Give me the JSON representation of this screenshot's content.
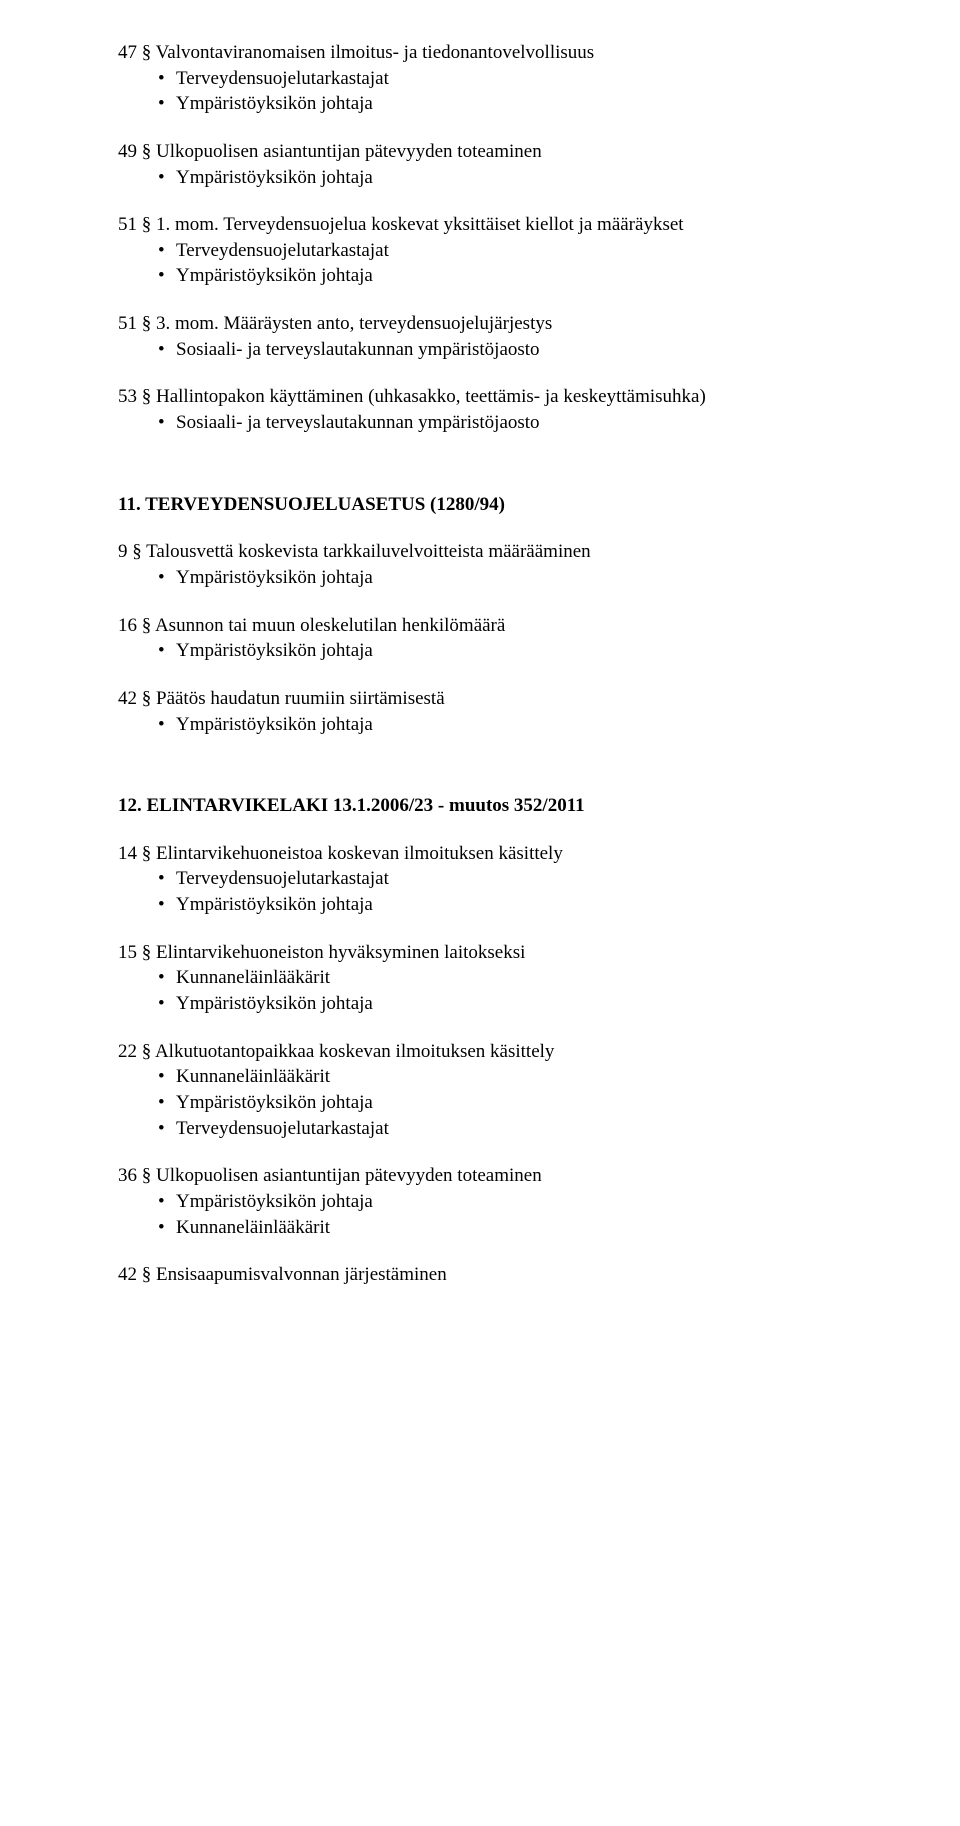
{
  "blocks": [
    {
      "line": "47 § Valvontaviranomaisen ilmoitus- ja tiedonantovelvollisuus",
      "bullets": [
        "Terveydensuojelutarkastajat",
        "Ympäristöyksikön johtaja"
      ]
    },
    {
      "line": "49 § Ulkopuolisen asiantuntijan pätevyyden toteaminen",
      "bullets": [
        "Ympäristöyksikön johtaja"
      ]
    },
    {
      "line": "51 § 1. mom. Terveydensuojelua koskevat yksittäiset kiellot ja määräykset",
      "bullets": [
        "Terveydensuojelutarkastajat",
        "Ympäristöyksikön johtaja"
      ]
    },
    {
      "line": "51 § 3. mom. Määräysten anto, terveydensuojelujärjestys",
      "bullets": [
        "Sosiaali- ja terveyslautakunnan ympäristöjaosto"
      ]
    },
    {
      "line": "53 § Hallintopakon käyttäminen (uhkasakko, teettämis- ja keskeyttämisuhka)",
      "bullets": [
        "Sosiaali- ja terveyslautakunnan ympäristöjaosto"
      ]
    }
  ],
  "heading1": "11. TERVEYDENSUOJELUASETUS (1280/94)",
  "blocks2": [
    {
      "line": "9 § Talousvettä koskevista tarkkailuvelvoitteista määrääminen",
      "bullets": [
        "Ympäristöyksikön johtaja"
      ]
    },
    {
      "line": "16 § Asunnon tai muun oleskelutilan henkilömäärä",
      "bullets": [
        "Ympäristöyksikön johtaja"
      ]
    },
    {
      "line": "42 § Päätös haudatun ruumiin siirtämisestä",
      "bullets": [
        "Ympäristöyksikön johtaja"
      ]
    }
  ],
  "heading2": "12. ELINTARVIKELAKI 13.1.2006/23 - muutos 352/2011",
  "blocks3": [
    {
      "line": "14 § Elintarvikehuoneistoa koskevan ilmoituksen käsittely",
      "bullets": [
        "Terveydensuojelutarkastajat",
        "Ympäristöyksikön johtaja"
      ]
    },
    {
      "line": "15 § Elintarvikehuoneiston hyväksyminen laitokseksi",
      "bullets": [
        "Kunnaneläinlääkärit",
        "Ympäristöyksikön johtaja"
      ]
    },
    {
      "line": "22 § Alkutuotantopaikkaa koskevan ilmoituksen käsittely",
      "bullets": [
        "Kunnaneläinlääkärit",
        "Ympäristöyksikön johtaja",
        "Terveydensuojelutarkastajat"
      ]
    },
    {
      "line": "36 § Ulkopuolisen asiantuntijan pätevyyden toteaminen",
      "bullets": [
        "Ympäristöyksikön johtaja",
        "Kunnaneläinlääkärit"
      ]
    },
    {
      "line": "42 § Ensisaapumisvalvonnan järjestäminen",
      "bullets": []
    }
  ]
}
